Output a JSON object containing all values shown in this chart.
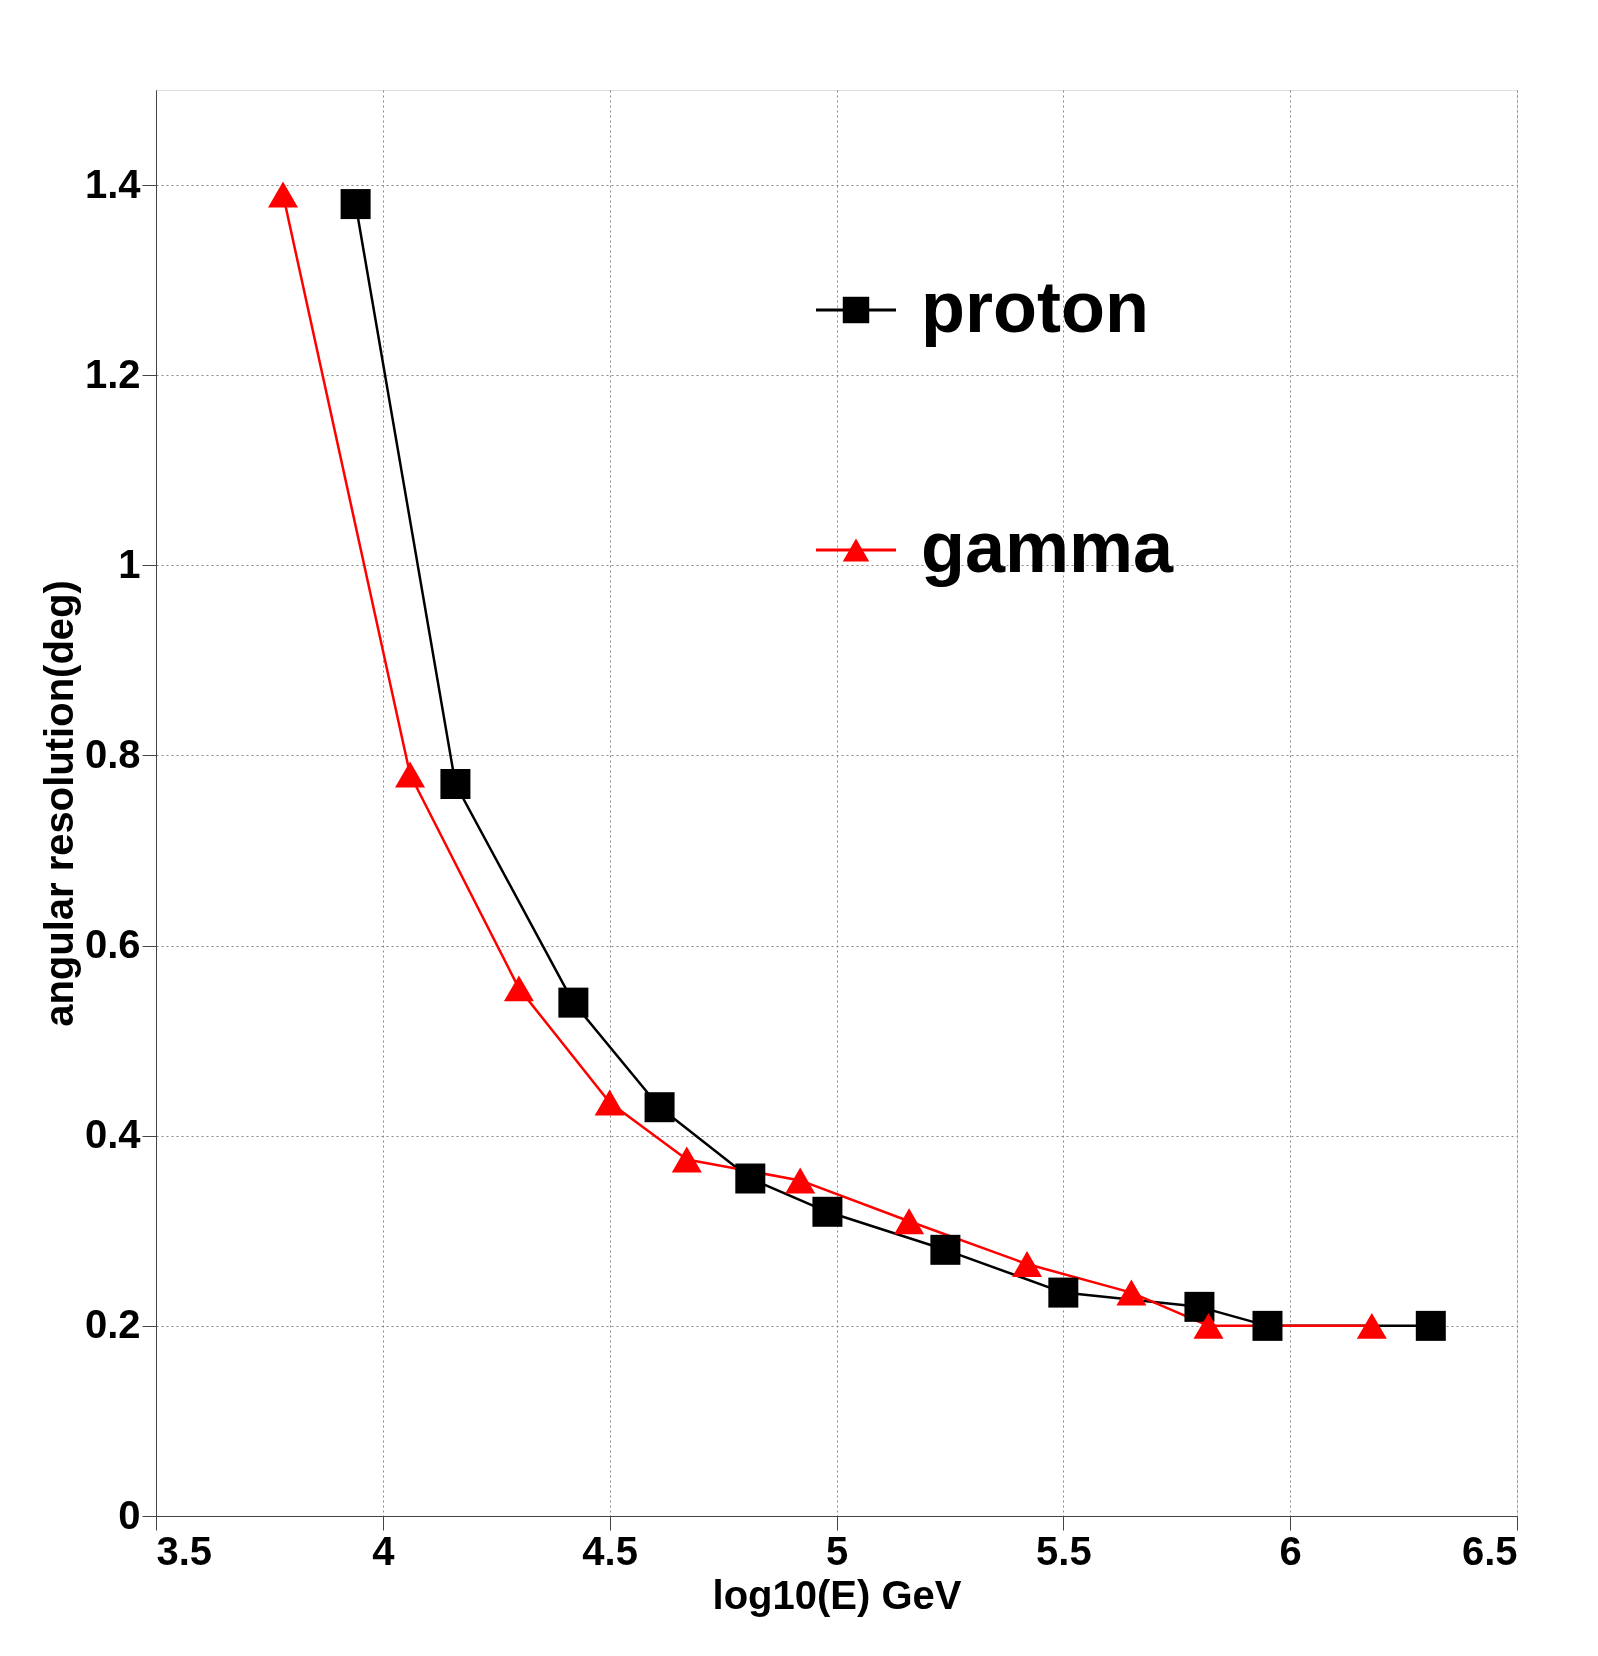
{
  "chart_data": {
    "type": "line",
    "xlabel": "log10(E) GeV",
    "ylabel": "angular resolution(deg)",
    "xlim": [
      3.5,
      6.5
    ],
    "ylim": [
      0,
      1.5
    ],
    "xticks": [
      3.5,
      4,
      4.5,
      5,
      5.5,
      6,
      6.5
    ],
    "yticks": [
      0,
      0.2,
      0.4,
      0.6,
      0.8,
      1,
      1.2,
      1.4
    ],
    "grid": true,
    "legend": "top right",
    "line_style": "solid",
    "series": [
      {
        "name": "proton",
        "color": "#000000",
        "marker": "square",
        "x": [
          3.94,
          4.16,
          4.42,
          4.61,
          4.81,
          4.98,
          5.24,
          5.5,
          5.8,
          5.95,
          6.31
        ],
        "values": [
          1.38,
          0.77,
          0.54,
          0.43,
          0.355,
          0.32,
          0.28,
          0.235,
          0.22,
          0.2,
          0.2
        ]
      },
      {
        "name": "gamma",
        "color": "#ff0000",
        "marker": "triangle",
        "x": [
          3.78,
          4.06,
          4.3,
          4.5,
          4.67,
          4.92,
          5.16,
          5.42,
          5.65,
          5.82,
          6.18
        ],
        "values": [
          1.39,
          0.78,
          0.555,
          0.435,
          0.375,
          0.353,
          0.31,
          0.265,
          0.235,
          0.2,
          0.2
        ]
      }
    ]
  }
}
